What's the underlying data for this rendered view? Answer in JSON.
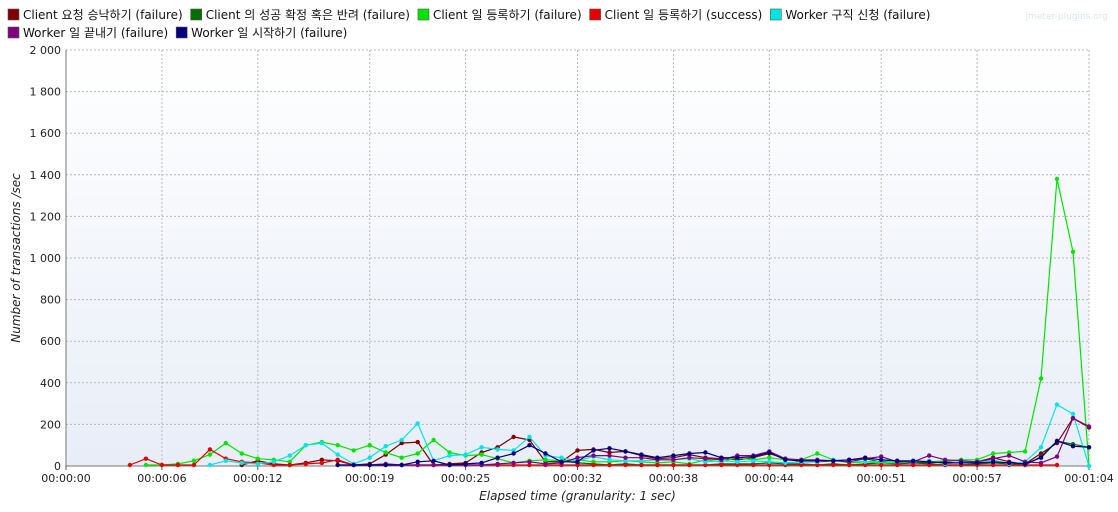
{
  "chart_data": {
    "type": "line",
    "watermark": "jmeter-plugins.org",
    "xlabel": "Elapsed time (granularity: 1 sec)",
    "ylabel": "Number of transactions /sec",
    "ylim": [
      0,
      2000
    ],
    "yticks": [
      0,
      200,
      400,
      600,
      800,
      1000,
      1200,
      1400,
      1600,
      1800,
      2000
    ],
    "ytick_labels": [
      "0",
      "200",
      "400",
      "600",
      "800",
      "1 000",
      "1 200",
      "1 400",
      "1 600",
      "1 800",
      "2 000"
    ],
    "xlim": [
      0,
      64
    ],
    "xticks": [
      0,
      6,
      12,
      19,
      25,
      32,
      38,
      44,
      51,
      57,
      64
    ],
    "xtick_labels": [
      "00:00:00",
      "00:00:06",
      "00:00:12",
      "00:00:19",
      "00:00:25",
      "00:00:32",
      "00:00:38",
      "00:00:44",
      "00:00:51",
      "00:00:57",
      "00:01:04"
    ],
    "grid": true,
    "legend_position": "top",
    "series": [
      {
        "name": "Client 요청 승낙하기 (failure)",
        "color": "#800000",
        "x": [
          11,
          12,
          13,
          14,
          15,
          16,
          17,
          18,
          19,
          20,
          21,
          22,
          23,
          24,
          25,
          26,
          27,
          28,
          29,
          30,
          31,
          32,
          33,
          34,
          35,
          36,
          37,
          38,
          39,
          40,
          41,
          42,
          43,
          44,
          45,
          46,
          47,
          48,
          49,
          50,
          51,
          52,
          53,
          54,
          55,
          56,
          57,
          58,
          59,
          60,
          61,
          62,
          63,
          64
        ],
        "values": [
          5,
          25,
          10,
          5,
          15,
          30,
          25,
          5,
          10,
          55,
          110,
          115,
          5,
          10,
          15,
          65,
          90,
          140,
          125,
          20,
          20,
          75,
          80,
          65,
          70,
          50,
          35,
          40,
          55,
          40,
          35,
          30,
          40,
          60,
          35,
          20,
          20,
          25,
          30,
          35,
          20,
          25,
          20,
          15,
          20,
          15,
          20,
          40,
          20,
          10,
          60,
          110,
          230,
          185
        ]
      },
      {
        "name": "Client 의 성공 확정 혹은 반려 (failure)",
        "color": "#007000",
        "x": [
          30,
          31,
          32,
          33,
          34,
          35,
          36,
          37,
          38,
          39,
          40,
          41,
          42,
          43,
          44,
          45,
          46,
          47,
          48,
          49,
          50,
          51,
          52,
          53,
          54,
          55,
          56,
          57,
          58,
          59,
          60,
          61,
          62,
          63,
          64
        ],
        "values": [
          20,
          25,
          15,
          10,
          5,
          10,
          5,
          5,
          5,
          5,
          5,
          10,
          10,
          10,
          15,
          10,
          10,
          5,
          10,
          5,
          10,
          15,
          10,
          15,
          10,
          5,
          5,
          10,
          15,
          10,
          5,
          45,
          120,
          105,
          90
        ]
      },
      {
        "name": "Client 일 등록하기 (failure)",
        "color": "#00e600",
        "x": [
          5,
          6,
          7,
          8,
          9,
          10,
          11,
          12,
          13,
          14,
          15,
          16,
          17,
          18,
          19,
          20,
          21,
          22,
          23,
          24,
          25,
          26,
          27,
          28,
          29,
          30,
          31,
          32,
          33,
          34,
          35,
          36,
          37,
          38,
          39,
          40,
          41,
          42,
          43,
          44,
          45,
          46,
          47,
          48,
          49,
          50,
          51,
          52,
          53,
          54,
          55,
          56,
          57,
          58,
          59,
          60,
          61,
          62,
          63,
          64
        ],
        "values": [
          5,
          5,
          10,
          25,
          55,
          110,
          60,
          35,
          30,
          20,
          100,
          115,
          100,
          75,
          100,
          65,
          40,
          60,
          125,
          65,
          50,
          55,
          35,
          15,
          25,
          30,
          25,
          30,
          20,
          20,
          25,
          20,
          15,
          20,
          10,
          30,
          20,
          40,
          30,
          40,
          30,
          30,
          60,
          30,
          15,
          20,
          15,
          15,
          25,
          20,
          25,
          30,
          30,
          60,
          65,
          70,
          420,
          1380,
          1030,
          0
        ]
      },
      {
        "name": "Client 일 등록하기 (success)",
        "color": "#e60000",
        "x": [
          4,
          5,
          6,
          7,
          8,
          9,
          10,
          11,
          12,
          13,
          14,
          15,
          16,
          17,
          18,
          19,
          20,
          21,
          22,
          23,
          24,
          25,
          26,
          27,
          28,
          29,
          30,
          31,
          32,
          33,
          34,
          35,
          36,
          37,
          38,
          39,
          40,
          41,
          42,
          43,
          44,
          45,
          46,
          47,
          48,
          49,
          50,
          51,
          52,
          53,
          54,
          55,
          56,
          57,
          58,
          59,
          60,
          61,
          62
        ],
        "values": [
          5,
          35,
          5,
          5,
          5,
          80,
          35,
          20,
          15,
          5,
          5,
          10,
          15,
          30,
          5,
          5,
          5,
          5,
          5,
          5,
          5,
          5,
          5,
          5,
          5,
          5,
          5,
          5,
          5,
          5,
          5,
          5,
          5,
          5,
          5,
          5,
          5,
          5,
          5,
          5,
          5,
          5,
          5,
          5,
          5,
          5,
          5,
          5,
          5,
          5,
          5,
          5,
          5,
          5,
          5,
          5,
          5,
          5,
          5
        ]
      },
      {
        "name": "Worker 구직 신청 (failure)",
        "color": "#00e6e6",
        "x": [
          9,
          10,
          11,
          12,
          13,
          14,
          15,
          16,
          17,
          18,
          19,
          20,
          21,
          22,
          23,
          24,
          25,
          26,
          27,
          28,
          29,
          30,
          31,
          32,
          33,
          34,
          35,
          36,
          37,
          38,
          39,
          40,
          41,
          42,
          43,
          44,
          45,
          46,
          47,
          48,
          49,
          50,
          51,
          52,
          53,
          54,
          55,
          56,
          57,
          58,
          59,
          60,
          61,
          62,
          63,
          64
        ],
        "values": [
          5,
          25,
          15,
          10,
          20,
          50,
          100,
          110,
          55,
          10,
          40,
          95,
          125,
          205,
          25,
          50,
          55,
          90,
          80,
          75,
          140,
          50,
          40,
          25,
          45,
          30,
          25,
          25,
          30,
          30,
          35,
          20,
          25,
          20,
          25,
          20,
          15,
          20,
          20,
          30,
          25,
          20,
          25,
          20,
          20,
          25,
          10,
          20,
          20,
          30,
          10,
          20,
          90,
          295,
          250,
          0
        ]
      },
      {
        "name": "Worker 일 끝내기 (failure)",
        "color": "#800080",
        "x": [
          17,
          18,
          19,
          20,
          21,
          22,
          23,
          24,
          25,
          26,
          27,
          28,
          29,
          30,
          31,
          32,
          33,
          34,
          35,
          36,
          37,
          38,
          39,
          40,
          41,
          42,
          43,
          44,
          45,
          46,
          47,
          48,
          49,
          50,
          51,
          52,
          53,
          54,
          55,
          56,
          57,
          58,
          59,
          60,
          61,
          62,
          63,
          64
        ],
        "values": [
          5,
          5,
          5,
          10,
          5,
          5,
          5,
          5,
          5,
          5,
          10,
          15,
          20,
          10,
          15,
          40,
          50,
          50,
          40,
          40,
          30,
          30,
          40,
          35,
          30,
          50,
          50,
          70,
          35,
          30,
          30,
          25,
          20,
          35,
          45,
          20,
          20,
          50,
          30,
          25,
          20,
          35,
          50,
          20,
          15,
          45,
          230,
          190
        ]
      },
      {
        "name": "Worker 일 시작하기 (failure)",
        "color": "#000080",
        "x": [
          17,
          18,
          19,
          20,
          21,
          22,
          23,
          24,
          25,
          26,
          27,
          28,
          29,
          30,
          31,
          32,
          33,
          34,
          35,
          36,
          37,
          38,
          39,
          40,
          41,
          42,
          43,
          44,
          45,
          46,
          47,
          48,
          49,
          50,
          51,
          52,
          53,
          54,
          55,
          56,
          57,
          58,
          59,
          60,
          61,
          62,
          63,
          64
        ],
        "values": [
          5,
          5,
          5,
          5,
          5,
          20,
          25,
          5,
          10,
          15,
          40,
          60,
          100,
          60,
          20,
          20,
          75,
          85,
          70,
          55,
          40,
          50,
          60,
          65,
          40,
          40,
          45,
          65,
          30,
          25,
          25,
          25,
          30,
          40,
          30,
          25,
          25,
          20,
          15,
          15,
          15,
          20,
          15,
          10,
          40,
          120,
          95,
          90
        ]
      }
    ]
  }
}
